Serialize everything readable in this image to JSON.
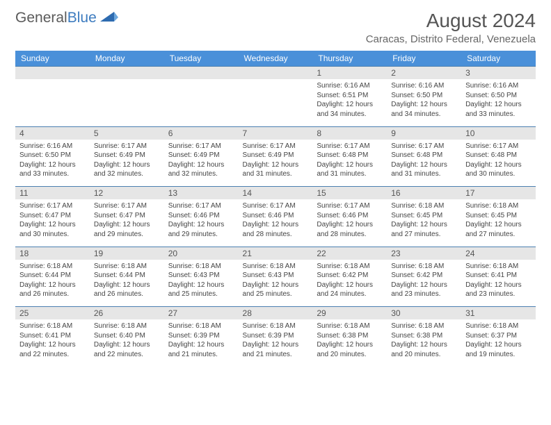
{
  "brand": {
    "part1": "General",
    "part2": "Blue",
    "part1_color": "#5a5a5a",
    "part2_color": "#3c7bbf"
  },
  "title": "August 2024",
  "location": "Caracas, Distrito Federal, Venezuela",
  "colors": {
    "header_bg": "#4a90d9",
    "header_text": "#ffffff",
    "daynum_bg": "#e6e6e6",
    "border": "#4a7fb0",
    "body_text": "#444444"
  },
  "typography": {
    "title_fontsize": 28,
    "location_fontsize": 15,
    "header_fontsize": 12,
    "daynum_fontsize": 12,
    "detail_fontsize": 10
  },
  "day_headers": [
    "Sunday",
    "Monday",
    "Tuesday",
    "Wednesday",
    "Thursday",
    "Friday",
    "Saturday"
  ],
  "weeks": [
    {
      "nums": [
        "",
        "",
        "",
        "",
        "1",
        "2",
        "3"
      ],
      "details": [
        "",
        "",
        "",
        "",
        "Sunrise: 6:16 AM\nSunset: 6:51 PM\nDaylight: 12 hours and 34 minutes.",
        "Sunrise: 6:16 AM\nSunset: 6:50 PM\nDaylight: 12 hours and 34 minutes.",
        "Sunrise: 6:16 AM\nSunset: 6:50 PM\nDaylight: 12 hours and 33 minutes."
      ]
    },
    {
      "nums": [
        "4",
        "5",
        "6",
        "7",
        "8",
        "9",
        "10"
      ],
      "details": [
        "Sunrise: 6:16 AM\nSunset: 6:50 PM\nDaylight: 12 hours and 33 minutes.",
        "Sunrise: 6:17 AM\nSunset: 6:49 PM\nDaylight: 12 hours and 32 minutes.",
        "Sunrise: 6:17 AM\nSunset: 6:49 PM\nDaylight: 12 hours and 32 minutes.",
        "Sunrise: 6:17 AM\nSunset: 6:49 PM\nDaylight: 12 hours and 31 minutes.",
        "Sunrise: 6:17 AM\nSunset: 6:48 PM\nDaylight: 12 hours and 31 minutes.",
        "Sunrise: 6:17 AM\nSunset: 6:48 PM\nDaylight: 12 hours and 31 minutes.",
        "Sunrise: 6:17 AM\nSunset: 6:48 PM\nDaylight: 12 hours and 30 minutes."
      ]
    },
    {
      "nums": [
        "11",
        "12",
        "13",
        "14",
        "15",
        "16",
        "17"
      ],
      "details": [
        "Sunrise: 6:17 AM\nSunset: 6:47 PM\nDaylight: 12 hours and 30 minutes.",
        "Sunrise: 6:17 AM\nSunset: 6:47 PM\nDaylight: 12 hours and 29 minutes.",
        "Sunrise: 6:17 AM\nSunset: 6:46 PM\nDaylight: 12 hours and 29 minutes.",
        "Sunrise: 6:17 AM\nSunset: 6:46 PM\nDaylight: 12 hours and 28 minutes.",
        "Sunrise: 6:17 AM\nSunset: 6:46 PM\nDaylight: 12 hours and 28 minutes.",
        "Sunrise: 6:18 AM\nSunset: 6:45 PM\nDaylight: 12 hours and 27 minutes.",
        "Sunrise: 6:18 AM\nSunset: 6:45 PM\nDaylight: 12 hours and 27 minutes."
      ]
    },
    {
      "nums": [
        "18",
        "19",
        "20",
        "21",
        "22",
        "23",
        "24"
      ],
      "details": [
        "Sunrise: 6:18 AM\nSunset: 6:44 PM\nDaylight: 12 hours and 26 minutes.",
        "Sunrise: 6:18 AM\nSunset: 6:44 PM\nDaylight: 12 hours and 26 minutes.",
        "Sunrise: 6:18 AM\nSunset: 6:43 PM\nDaylight: 12 hours and 25 minutes.",
        "Sunrise: 6:18 AM\nSunset: 6:43 PM\nDaylight: 12 hours and 25 minutes.",
        "Sunrise: 6:18 AM\nSunset: 6:42 PM\nDaylight: 12 hours and 24 minutes.",
        "Sunrise: 6:18 AM\nSunset: 6:42 PM\nDaylight: 12 hours and 23 minutes.",
        "Sunrise: 6:18 AM\nSunset: 6:41 PM\nDaylight: 12 hours and 23 minutes."
      ]
    },
    {
      "nums": [
        "25",
        "26",
        "27",
        "28",
        "29",
        "30",
        "31"
      ],
      "details": [
        "Sunrise: 6:18 AM\nSunset: 6:41 PM\nDaylight: 12 hours and 22 minutes.",
        "Sunrise: 6:18 AM\nSunset: 6:40 PM\nDaylight: 12 hours and 22 minutes.",
        "Sunrise: 6:18 AM\nSunset: 6:39 PM\nDaylight: 12 hours and 21 minutes.",
        "Sunrise: 6:18 AM\nSunset: 6:39 PM\nDaylight: 12 hours and 21 minutes.",
        "Sunrise: 6:18 AM\nSunset: 6:38 PM\nDaylight: 12 hours and 20 minutes.",
        "Sunrise: 6:18 AM\nSunset: 6:38 PM\nDaylight: 12 hours and 20 minutes.",
        "Sunrise: 6:18 AM\nSunset: 6:37 PM\nDaylight: 12 hours and 19 minutes."
      ]
    }
  ]
}
